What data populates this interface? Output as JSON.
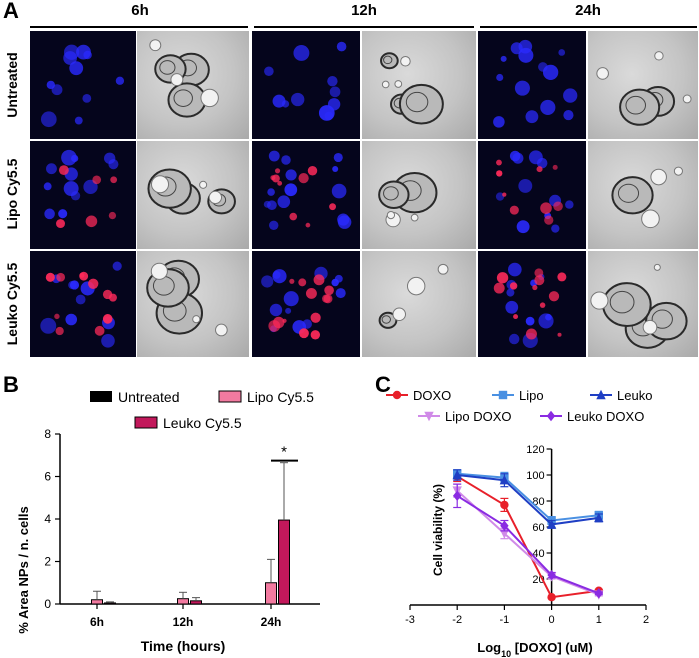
{
  "panelA": {
    "letter": "A",
    "time_headers": [
      "6h",
      "12h",
      "24h"
    ],
    "row_labels": [
      "Untreated",
      "Lipo Cy5.5",
      "Leuko Cy5.5"
    ]
  },
  "panelB": {
    "letter": "B",
    "legend": [
      "Untreated",
      "Lipo Cy5.5",
      "Leuko Cy5.5"
    ],
    "colors": {
      "Untreated": "#000000",
      "Lipo Cy5.5": "#f27aa0",
      "Leuko Cy5.5": "#c2185b"
    },
    "significance": "*"
  },
  "panelC": {
    "letter": "C",
    "legend": [
      "DOXO",
      "Lipo",
      "Leuko",
      "Lipo DOXO",
      "Leuko DOXO"
    ],
    "colors": {
      "DOXO": "#e8202a",
      "Lipo": "#4a90e2",
      "Leuko": "#1f3fc4",
      "Lipo DOXO": "#d08ae8",
      "Leuko DOXO": "#8a2be2"
    },
    "markers": {
      "DOXO": "circle",
      "Lipo": "square",
      "Leuko": "triangle-up",
      "Lipo DOXO": "triangle-down",
      "Leuko DOXO": "diamond"
    }
  },
  "chart_data": [
    {
      "type": "bar",
      "xlabel": "Time (hours)",
      "ylabel": "% Area NPs / n. cells",
      "categories": [
        "6h",
        "12h",
        "24h"
      ],
      "ylim": [
        0,
        8
      ],
      "yticks": [
        0,
        2,
        4,
        6,
        8
      ],
      "series": [
        {
          "name": "Untreated",
          "values": [
            0.0,
            0.0,
            0.0
          ],
          "errors": [
            0.0,
            0.0,
            0.0
          ]
        },
        {
          "name": "Lipo Cy5.5",
          "values": [
            0.2,
            0.25,
            1.0
          ],
          "errors": [
            0.4,
            0.3,
            1.1
          ]
        },
        {
          "name": "Leuko Cy5.5",
          "values": [
            0.05,
            0.15,
            3.95
          ],
          "errors": [
            0.05,
            0.15,
            2.7
          ]
        }
      ],
      "annotation": "*"
    },
    {
      "type": "line",
      "xlabel": "Log10 [DOXO] (uM)",
      "ylabel": "Cell viability (%)",
      "xlim": [
        -3,
        2
      ],
      "ylim": [
        0,
        120
      ],
      "xticks": [
        -3,
        -2,
        -1,
        0,
        1,
        2
      ],
      "yticks": [
        20,
        40,
        60,
        80,
        100,
        120
      ],
      "series": [
        {
          "name": "DOXO",
          "x": [
            -2,
            -1,
            0,
            1
          ],
          "y": [
            99,
            77,
            6,
            11
          ],
          "err": [
            4,
            5,
            0,
            1
          ]
        },
        {
          "name": "Lipo",
          "x": [
            -2,
            -1,
            0,
            1
          ],
          "y": [
            101,
            98,
            65,
            69
          ],
          "err": [
            3,
            4,
            3,
            3
          ]
        },
        {
          "name": "Leuko",
          "x": [
            -2,
            -1,
            0,
            1
          ],
          "y": [
            100,
            96,
            62,
            67
          ],
          "err": [
            4,
            5,
            3,
            3
          ]
        },
        {
          "name": "Lipo DOXO",
          "x": [
            -2,
            -1,
            0,
            1
          ],
          "y": [
            88,
            55,
            22,
            8
          ],
          "err": [
            5,
            4,
            2,
            1
          ]
        },
        {
          "name": "Leuko DOXO",
          "x": [
            -2,
            -1,
            0,
            1
          ],
          "y": [
            84,
            61,
            23,
            9
          ],
          "err": [
            9,
            4,
            2,
            1
          ]
        }
      ]
    }
  ]
}
